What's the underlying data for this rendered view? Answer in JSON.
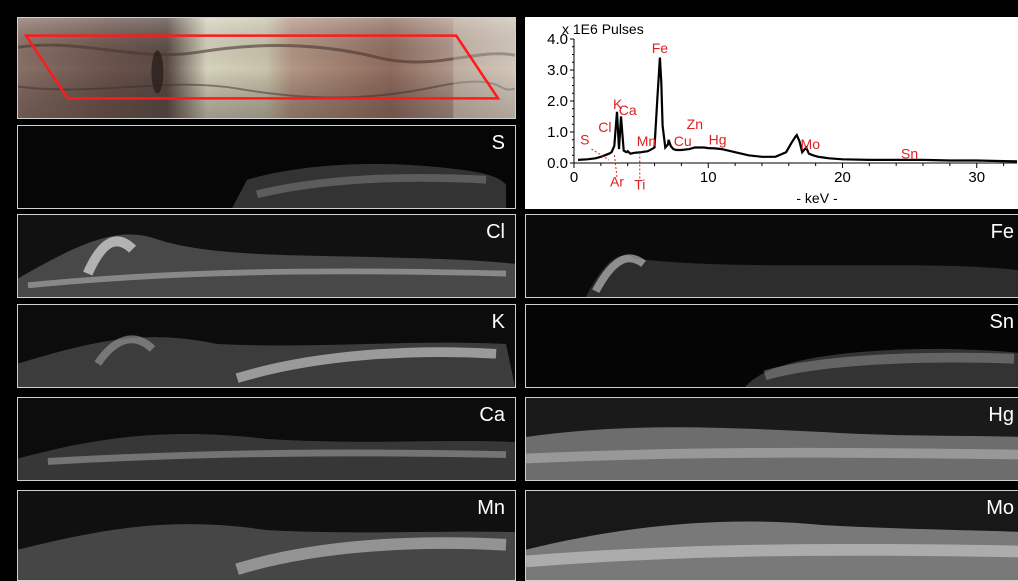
{
  "photo": {
    "description_label": ""
  },
  "element_maps": {
    "left": [
      {
        "element": "S"
      },
      {
        "element": "Cl"
      },
      {
        "element": "K"
      },
      {
        "element": "Ca"
      },
      {
        "element": "Mn"
      }
    ],
    "right": [
      {
        "element": "Fe"
      },
      {
        "element": "Sn"
      },
      {
        "element": "Hg"
      },
      {
        "element": "Mo"
      }
    ]
  },
  "chart_data": {
    "type": "line",
    "title": "",
    "y_unit_label": "x 1E6 Pulses",
    "xlabel": "- keV -",
    "ylabel": "",
    "xlim": [
      0,
      33
    ],
    "ylim": [
      0,
      4.0
    ],
    "x_ticks": [
      "0",
      "10",
      "20",
      "30"
    ],
    "y_ticks": [
      "0.0",
      "1.0",
      "2.0",
      "3.0",
      "4.0"
    ],
    "grid": false,
    "line_color": "#000000",
    "annotation_color": "#e02020",
    "series": [
      {
        "x": [
          0.3,
          1.0,
          1.6,
          2.0,
          2.3,
          2.6,
          2.8,
          3.0,
          3.2,
          3.35,
          3.5,
          3.7,
          3.9,
          4.0,
          4.2,
          4.5,
          5.0,
          5.5,
          5.8,
          6.0,
          6.2,
          6.4,
          6.5,
          6.6,
          6.8,
          7.0,
          7.05,
          7.2,
          7.4,
          7.6,
          8.0,
          8.6,
          9.0,
          9.7,
          10.0,
          10.5,
          11.0,
          12.0,
          13.0,
          14.0,
          15.0,
          15.8,
          16.2,
          16.5,
          16.6,
          16.8,
          17.0,
          17.3,
          17.5,
          17.8,
          18.2,
          18.5,
          19.0,
          20.0,
          22.0,
          24.0,
          26.0,
          28.0,
          30.0,
          32.0,
          33.0
        ],
        "y": [
          0.1,
          0.12,
          0.15,
          0.2,
          0.25,
          0.3,
          0.35,
          0.55,
          1.65,
          0.45,
          1.5,
          0.4,
          0.35,
          0.38,
          0.3,
          0.33,
          0.35,
          0.38,
          0.45,
          0.5,
          2.0,
          3.4,
          2.6,
          1.2,
          0.5,
          0.6,
          0.75,
          0.55,
          0.45,
          0.42,
          0.42,
          0.45,
          0.5,
          0.5,
          0.48,
          0.47,
          0.45,
          0.35,
          0.25,
          0.2,
          0.2,
          0.35,
          0.65,
          0.85,
          0.9,
          0.7,
          0.35,
          0.5,
          0.3,
          0.25,
          0.2,
          0.18,
          0.15,
          0.12,
          0.1,
          0.1,
          0.1,
          0.08,
          0.08,
          0.06,
          0.05
        ]
      }
    ],
    "annotations": [
      {
        "label": "Fe",
        "x": 6.4,
        "y": 3.55
      },
      {
        "label": "K",
        "x": 3.25,
        "y": 1.75
      },
      {
        "label": "Ca",
        "x": 4.0,
        "y": 1.55
      },
      {
        "label": "Cl",
        "x": 2.3,
        "y": 1.0
      },
      {
        "label": "S",
        "x": 0.8,
        "y": 0.6
      },
      {
        "label": "Mn",
        "x": 5.4,
        "y": 0.55
      },
      {
        "label": "Cu",
        "x": 8.1,
        "y": 0.55
      },
      {
        "label": "Zn",
        "x": 9.0,
        "y": 1.1
      },
      {
        "label": "Hg",
        "x": 10.7,
        "y": 0.6
      },
      {
        "label": "Mo",
        "x": 17.6,
        "y": 0.45
      },
      {
        "label": "Sn",
        "x": 25.0,
        "y": 0.15
      },
      {
        "label": "Ar",
        "x": 3.2,
        "y": -0.75
      },
      {
        "label": "Ti",
        "x": 4.9,
        "y": -0.85
      }
    ]
  }
}
